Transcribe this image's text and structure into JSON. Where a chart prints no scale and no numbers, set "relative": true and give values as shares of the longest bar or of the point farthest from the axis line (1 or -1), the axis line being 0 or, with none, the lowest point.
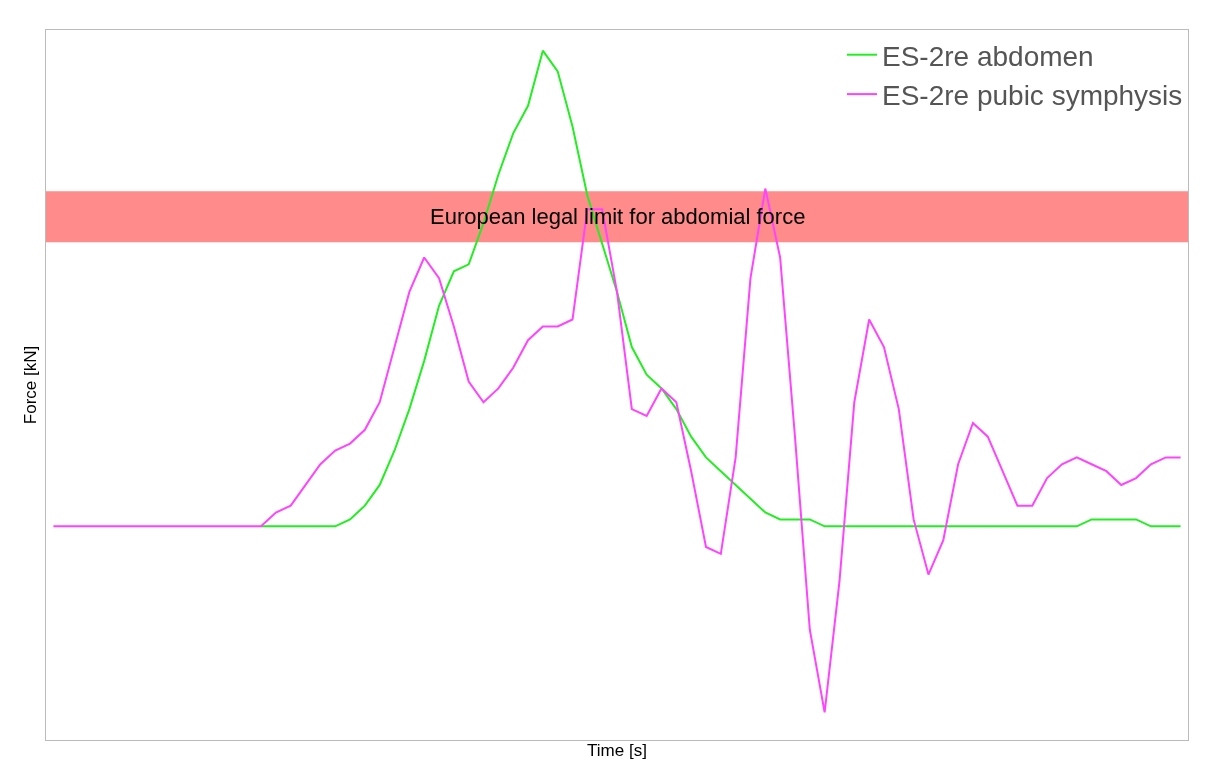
{
  "chart_data": {
    "type": "line",
    "relative": true,
    "xlabel": "Time [s]",
    "ylabel": "Force [kN]",
    "legend": "top right",
    "grid": false,
    "marker": "none",
    "line_style": "solid",
    "categories": [
      null,
      null,
      null,
      null,
      null,
      null,
      null,
      null,
      null,
      null,
      null,
      null,
      null,
      null,
      null,
      null,
      null,
      null,
      null,
      null,
      null,
      null,
      null,
      null,
      null,
      null,
      null,
      null,
      null,
      null,
      null,
      null,
      null,
      null,
      null,
      null,
      null,
      null,
      null,
      null,
      null,
      null,
      null,
      null,
      null,
      null,
      null,
      null,
      null,
      null,
      null,
      null,
      null,
      null,
      null,
      null,
      null,
      null,
      null,
      null,
      null,
      null,
      null,
      null,
      null,
      null,
      null,
      null,
      null,
      null,
      null,
      null,
      null,
      null,
      null,
      null,
      null
    ],
    "series": [
      {
        "name": "ES-2re abdomen",
        "color": "#22ee22",
        "values": [
          null,
          null,
          null,
          null,
          null,
          null,
          null,
          null,
          null,
          null,
          null,
          null,
          null,
          null,
          0.31,
          0.31,
          0.31,
          0.31,
          0.31,
          0.31,
          0.32,
          0.34,
          0.37,
          0.42,
          0.48,
          0.55,
          0.63,
          0.68,
          0.69,
          0.75,
          0.82,
          0.88,
          0.92,
          1.0,
          0.97,
          0.89,
          0.79,
          0.72,
          0.65,
          0.57,
          0.53,
          0.51,
          0.48,
          0.44,
          0.41,
          0.39,
          0.37,
          0.35,
          0.33,
          0.32,
          0.32,
          0.32,
          0.31,
          0.31,
          0.31,
          0.31,
          0.31,
          0.31,
          0.31,
          0.31,
          0.31,
          0.31,
          0.31,
          0.31,
          0.31,
          0.31,
          0.31,
          0.31,
          0.31,
          0.31,
          0.32,
          0.32,
          0.32,
          0.32,
          0.31,
          0.31,
          0.31
        ]
      },
      {
        "name": "ES-2re pubic symphysis",
        "color": "#ff44ff",
        "values": [
          0.31,
          0.31,
          0.31,
          0.31,
          0.31,
          0.31,
          0.31,
          0.31,
          0.31,
          0.31,
          0.31,
          0.31,
          0.31,
          0.31,
          0.31,
          0.33,
          0.34,
          0.37,
          0.4,
          0.42,
          0.43,
          0.45,
          0.49,
          0.57,
          0.65,
          0.7,
          0.67,
          0.6,
          0.52,
          0.49,
          0.51,
          0.54,
          0.58,
          0.6,
          0.6,
          0.61,
          0.77,
          0.77,
          0.65,
          0.48,
          0.47,
          0.51,
          0.49,
          0.39,
          0.28,
          0.27,
          0.41,
          0.67,
          0.8,
          0.7,
          0.44,
          0.16,
          0.04,
          0.23,
          0.49,
          0.61,
          0.57,
          0.48,
          0.32,
          0.24,
          0.29,
          0.4,
          0.46,
          0.44,
          0.39,
          0.34,
          0.34,
          0.38,
          0.4,
          0.41,
          0.4,
          0.39,
          0.37,
          0.38,
          0.4,
          0.41,
          0.41
        ]
      }
    ],
    "bands": [
      {
        "axis": "y",
        "from": 0.722,
        "to": 0.796,
        "label": "European legal limit for abdomial force",
        "color": "#ff7777"
      }
    ]
  }
}
